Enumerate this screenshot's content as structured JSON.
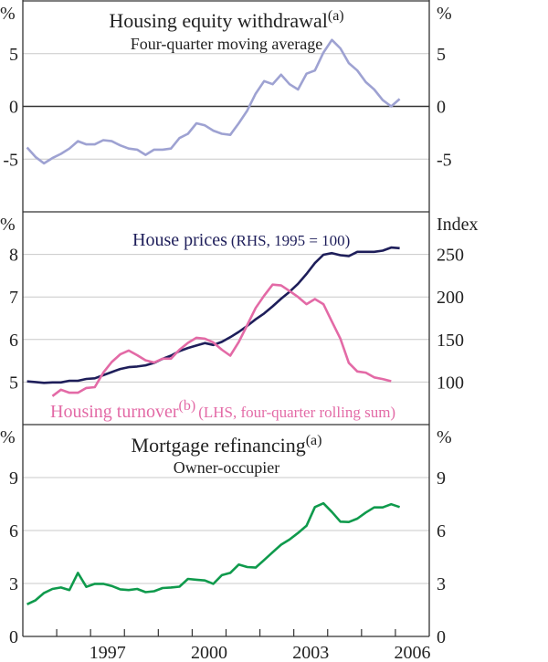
{
  "chart_data": [
    {
      "type": "line",
      "title": "Housing equity withdrawal",
      "title_note": "(a)",
      "subtitle": "Four-quarter moving average",
      "ylabel_left": "%",
      "ylabel_right": "%",
      "ylim": [
        -10,
        10
      ],
      "yticks": [
        -5,
        0,
        5
      ],
      "zero_line": true,
      "x_start": 1995.125,
      "x_step": 0.25,
      "series": [
        {
          "name": "Housing equity withdrawal",
          "color": "#9ea2d2",
          "axis": "left",
          "start_index": 0,
          "values": [
            -3.9,
            -4.8,
            -5.4,
            -4.9,
            -4.5,
            -4.0,
            -3.3,
            -3.6,
            -3.6,
            -3.2,
            -3.3,
            -3.7,
            -4.0,
            -4.1,
            -4.6,
            -4.1,
            -4.1,
            -4.0,
            -3.0,
            -2.6,
            -1.6,
            -1.8,
            -2.3,
            -2.6,
            -2.7,
            -1.6,
            -0.4,
            1.2,
            2.4,
            2.1,
            3.0,
            2.1,
            1.6,
            3.1,
            3.4,
            5.1,
            6.3,
            5.5,
            4.1,
            3.4,
            2.3,
            1.6,
            0.6,
            0.0,
            0.7
          ]
        }
      ]
    },
    {
      "type": "line",
      "ylabel_left": "%",
      "ylabel_right": "Index",
      "ylim": [
        4,
        9
      ],
      "yticks": [
        5,
        6,
        7,
        8
      ],
      "ylim_right": [
        50,
        300
      ],
      "yticks_right": [
        100,
        150,
        200,
        250
      ],
      "x_start": 1995.125,
      "x_step": 0.25,
      "labels": {
        "house_prices": "House prices",
        "house_prices_note": "(RHS, 1995 = 100)",
        "turnover": "Housing turnover",
        "turnover_sup": "(b)",
        "turnover_note": "(LHS, four-quarter rolling sum)"
      },
      "series": [
        {
          "name": "House prices (RHS, 1995 = 100)",
          "color": "#1e1e5a",
          "axis": "right",
          "start_index": 0,
          "values": [
            100.8,
            100,
            99,
            99.6,
            99.6,
            101.5,
            101.5,
            103.6,
            104.4,
            108,
            111.7,
            115.3,
            117.5,
            118.2,
            119.6,
            122.5,
            127.3,
            131,
            136.4,
            140,
            142.9,
            145.8,
            143.6,
            147.2,
            152.7,
            158.9,
            166,
            173.7,
            180.6,
            189,
            198,
            206,
            215.5,
            227,
            239.8,
            249.6,
            251.5,
            249,
            248,
            253,
            253,
            253,
            254.4,
            258,
            257.3
          ]
        },
        {
          "name": "Housing turnover (LHS, four-quarter rolling sum)",
          "color": "#e36aa6",
          "axis": "left",
          "start_index": 3,
          "values": [
            4.67,
            4.82,
            4.75,
            4.75,
            4.86,
            4.88,
            5.22,
            5.47,
            5.65,
            5.74,
            5.63,
            5.51,
            5.46,
            5.55,
            5.55,
            5.76,
            5.92,
            6.04,
            6.02,
            5.93,
            5.76,
            5.62,
            5.94,
            6.34,
            6.74,
            7.03,
            7.29,
            7.27,
            7.14,
            7.0,
            6.83,
            6.95,
            6.83,
            6.42,
            6.02,
            5.45,
            5.25,
            5.22,
            5.11,
            5.07,
            5.02
          ]
        }
      ]
    },
    {
      "type": "line",
      "title": "Mortgage refinancing",
      "title_note": "(a)",
      "subtitle": "Owner-occupier",
      "ylabel_left": "%",
      "ylabel_right": "%",
      "ylim": [
        0,
        12
      ],
      "yticks": [
        0,
        3,
        6,
        9
      ],
      "x_start": 1995.125,
      "x_step": 0.25,
      "series": [
        {
          "name": "Mortgage refinancing",
          "color": "#0f9a4c",
          "axis": "left",
          "start_index": 0,
          "values": [
            1.82,
            2.05,
            2.46,
            2.69,
            2.77,
            2.63,
            3.6,
            2.81,
            2.98,
            2.98,
            2.86,
            2.67,
            2.63,
            2.69,
            2.51,
            2.56,
            2.74,
            2.77,
            2.82,
            3.26,
            3.21,
            3.17,
            2.98,
            3.47,
            3.6,
            4.07,
            3.93,
            3.9,
            4.33,
            4.77,
            5.2,
            5.49,
            5.86,
            6.27,
            7.33,
            7.54,
            7.05,
            6.5,
            6.48,
            6.67,
            7.02,
            7.31,
            7.31,
            7.49,
            7.33
          ]
        }
      ]
    }
  ],
  "x_axis": {
    "xlim": [
      1995,
      2007
    ],
    "tick_years": [
      1996,
      1997,
      1998,
      1999,
      2000,
      2001,
      2002,
      2003,
      2004,
      2005,
      2006
    ],
    "labels": [
      "1997",
      "2000",
      "2003",
      "2006"
    ]
  }
}
